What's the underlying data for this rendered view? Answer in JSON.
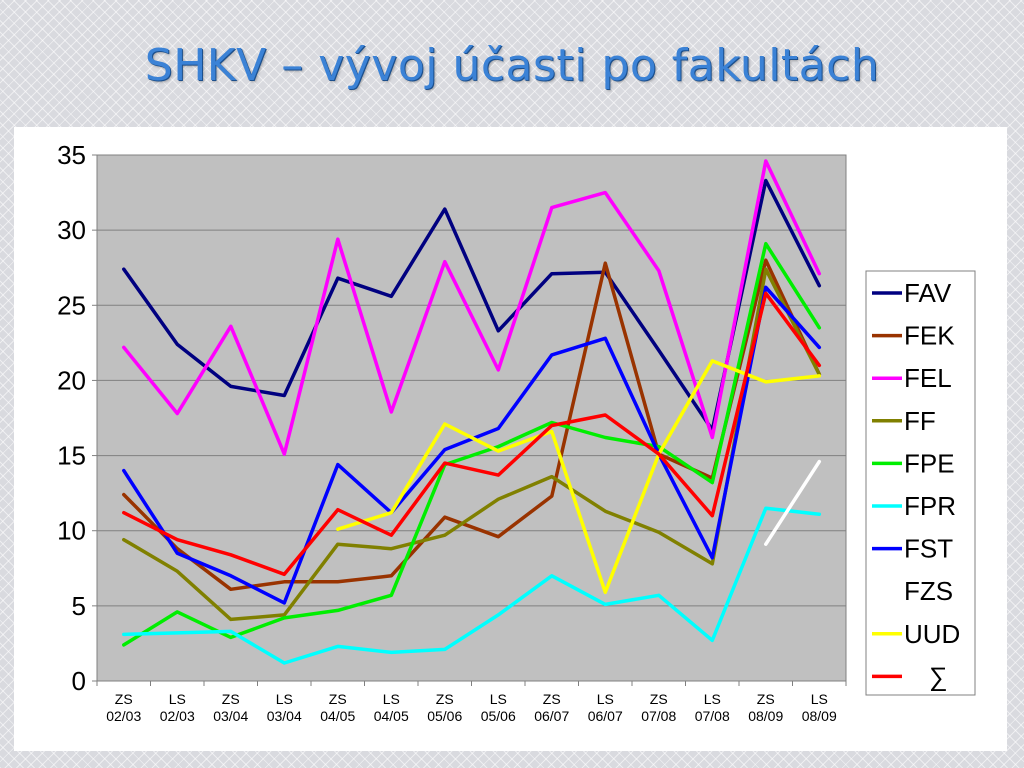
{
  "slide": {
    "title": "SHKV – vývoj účasti po fakultách"
  },
  "chart_data": {
    "type": "line",
    "title": "",
    "xlabel": "",
    "ylabel": "",
    "ylim": [
      0,
      35
    ],
    "yticks": [
      0,
      5,
      10,
      15,
      20,
      25,
      30,
      35
    ],
    "grid": true,
    "legend": "right",
    "categories": [
      [
        "ZS",
        "02/03"
      ],
      [
        "LS",
        "02/03"
      ],
      [
        "ZS",
        "03/04"
      ],
      [
        "LS",
        "03/04"
      ],
      [
        "ZS",
        "04/05"
      ],
      [
        "LS",
        "04/05"
      ],
      [
        "ZS",
        "05/06"
      ],
      [
        "LS",
        "05/06"
      ],
      [
        "ZS",
        "06/07"
      ],
      [
        "LS",
        "06/07"
      ],
      [
        "ZS",
        "07/08"
      ],
      [
        "LS",
        "07/08"
      ],
      [
        "ZS",
        "08/09"
      ],
      [
        "LS",
        "08/09"
      ]
    ],
    "series": [
      {
        "name": "FAV",
        "color": "#000080",
        "values": [
          27.4,
          22.4,
          19.6,
          19.0,
          26.8,
          25.6,
          31.4,
          23.3,
          27.1,
          27.2,
          22.0,
          16.7,
          33.3,
          26.3
        ]
      },
      {
        "name": "FEK",
        "color": "#993300",
        "values": [
          12.4,
          8.8,
          6.1,
          6.6,
          6.6,
          7.0,
          10.9,
          9.6,
          12.3,
          27.8,
          15.1,
          13.5,
          28.0,
          20.4
        ]
      },
      {
        "name": "FEL",
        "color": "#ff00ff",
        "values": [
          22.2,
          17.8,
          23.6,
          15.1,
          29.4,
          17.9,
          27.9,
          20.7,
          31.5,
          32.5,
          27.3,
          16.2,
          34.6,
          27.1
        ]
      },
      {
        "name": "FF",
        "color": "#808000",
        "values": [
          9.4,
          7.3,
          4.1,
          4.4,
          9.1,
          8.8,
          9.7,
          12.1,
          13.6,
          11.3,
          9.9,
          7.8,
          27.4,
          20.4
        ]
      },
      {
        "name": "FPE",
        "color": "#00ee00",
        "values": [
          2.4,
          4.6,
          2.9,
          4.2,
          4.7,
          5.7,
          14.4,
          15.6,
          17.2,
          16.2,
          15.6,
          13.2,
          29.1,
          23.5
        ]
      },
      {
        "name": "FPR",
        "color": "#00ffff",
        "values": [
          3.1,
          3.2,
          3.3,
          1.2,
          2.3,
          1.9,
          2.1,
          4.4,
          7.0,
          5.1,
          5.7,
          2.7,
          11.5,
          11.1
        ]
      },
      {
        "name": "FST",
        "color": "#0000ff",
        "values": [
          14.0,
          8.5,
          7.0,
          5.2,
          14.4,
          11.2,
          15.4,
          16.8,
          21.7,
          22.8,
          15.1,
          8.2,
          26.2,
          22.2
        ]
      },
      {
        "name": "FZS",
        "color": "#ffffff",
        "values": [
          null,
          null,
          null,
          null,
          null,
          null,
          null,
          null,
          null,
          null,
          null,
          null,
          9.1,
          14.6
        ]
      },
      {
        "name": "UUD",
        "color": "#ffff00",
        "values": [
          null,
          null,
          null,
          null,
          10.1,
          11.2,
          17.1,
          15.3,
          16.6,
          5.9,
          15.1,
          21.3,
          19.9,
          20.3
        ]
      },
      {
        "name": "∑",
        "color": "#ff0000",
        "values": [
          11.2,
          9.4,
          8.4,
          7.1,
          11.4,
          9.7,
          14.5,
          13.7,
          17.0,
          17.7,
          15.1,
          11.0,
          25.8,
          21.0
        ]
      }
    ]
  }
}
